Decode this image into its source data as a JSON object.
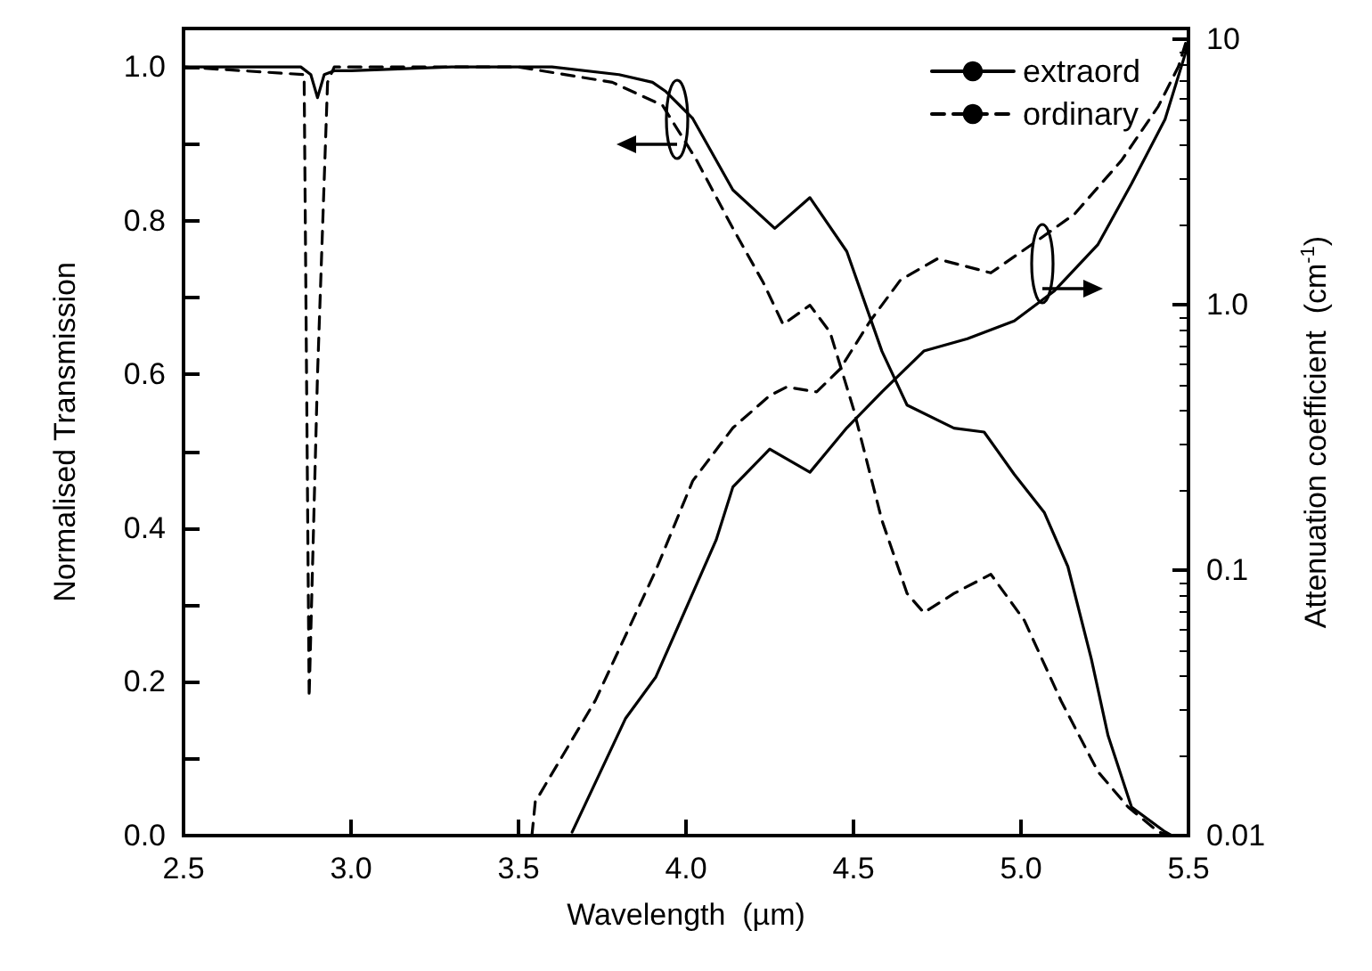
{
  "chart_data": {
    "type": "line",
    "xlabel": "Wavelength  (µm)",
    "ylabel": "Normalised Transmission",
    "y2label": "Attenuation coefficient  (cm$^{-1}$)",
    "xlim": [
      2.5,
      5.5
    ],
    "xticks": [
      {
        "value": 2.5,
        "label": "2.5"
      },
      {
        "value": 3,
        "label": "3.0"
      },
      {
        "value": 3.5,
        "label": "3.5"
      },
      {
        "value": 4,
        "label": "4.0"
      },
      {
        "value": 4.5,
        "label": "4.5"
      },
      {
        "value": 5,
        "label": "5.0"
      },
      {
        "value": 5.5,
        "label": "5.5"
      }
    ],
    "ylim": [
      0,
      1.05
    ],
    "yticks": [
      {
        "value": 0,
        "label": "0.0"
      },
      {
        "value": 0.1,
        "label": null
      },
      {
        "value": 0.2,
        "label": "0.2"
      },
      {
        "value": 0.3,
        "label": null
      },
      {
        "value": 0.4,
        "label": "0.4"
      },
      {
        "value": 0.5,
        "label": null
      },
      {
        "value": 0.6,
        "label": "0.6"
      },
      {
        "value": 0.7,
        "label": null
      },
      {
        "value": 0.8,
        "label": "0.8"
      },
      {
        "value": 0.9,
        "label": null
      },
      {
        "value": 1,
        "label": "1.0"
      }
    ],
    "y2lim": [
      0.01,
      11
    ],
    "y2ticks": [
      0.01,
      0.1,
      {
        "value": 1,
        "label": "1.0"
      },
      10
    ],
    "log": "y2",
    "grid": false,
    "legend": "top right",
    "marker": "none",
    "series": [
      {
        "name": "extraord",
        "color": "#000000",
        "line_style": "solid",
        "x": [
          2.5,
          2.85,
          2.88,
          2.9,
          2.92,
          2.95,
          3.0,
          3.3,
          3.6,
          3.8,
          3.9,
          3.94,
          4.02,
          4.14,
          4.265,
          4.37,
          4.48,
          4.585,
          4.66,
          4.8,
          4.89,
          4.98,
          5.07,
          5.14,
          5.21,
          5.26,
          5.33,
          5.43,
          5.45
        ],
        "values": [
          1.0,
          1.0,
          0.99,
          0.96,
          0.99,
          0.995,
          0.995,
          1.0,
          1.0,
          0.99,
          0.98,
          0.968,
          0.933,
          0.84,
          0.79,
          0.83,
          0.76,
          0.63,
          0.56,
          0.53,
          0.525,
          0.47,
          0.42,
          0.35,
          0.23,
          0.13,
          0.037,
          0.005,
          0.0
        ]
      },
      {
        "name": "ordinary",
        "color": "#000000",
        "line_style": "dashed",
        "x": [
          2.5,
          2.86,
          2.875,
          2.9,
          2.93,
          2.95,
          3.5,
          3.78,
          3.93,
          4.03,
          4.14,
          4.23,
          4.29,
          4.37,
          4.43,
          4.5,
          4.585,
          4.66,
          4.71,
          4.8,
          4.91,
          5.01,
          5.12,
          5.23,
          5.32,
          5.41,
          5.44
        ],
        "values": [
          1.0,
          0.99,
          0.18,
          0.6,
          0.98,
          1.0,
          1.0,
          0.98,
          0.95,
          0.88,
          0.79,
          0.72,
          0.665,
          0.69,
          0.655,
          0.555,
          0.41,
          0.315,
          0.29,
          0.315,
          0.34,
          0.28,
          0.175,
          0.083,
          0.037,
          0.005,
          0.0
        ]
      },
      {
        "color": "#000000",
        "line_style": "solid",
        "axis": "y2",
        "x": [
          3.66,
          3.82,
          3.91,
          4.09,
          4.14,
          4.25,
          4.37,
          4.48,
          4.585,
          4.71,
          4.84,
          4.98,
          5.1,
          5.23,
          5.33,
          5.43,
          5.49,
          5.5
        ],
        "values": [
          0.0103,
          0.0277,
          0.0396,
          0.13,
          0.206,
          0.286,
          0.234,
          0.344,
          0.47,
          0.67,
          0.745,
          0.87,
          1.13,
          1.69,
          2.86,
          5.0,
          8.8,
          10.0
        ]
      },
      {
        "color": "#000000",
        "line_style": "dashed",
        "axis": "y2",
        "x": [
          3.54,
          3.55,
          3.73,
          3.91,
          4.02,
          4.14,
          4.25,
          4.3,
          4.39,
          4.46,
          4.55,
          4.64,
          4.75,
          4.91,
          5.05,
          5.16,
          5.3,
          5.41,
          5.47,
          5.5
        ],
        "values": [
          0.01,
          0.0134,
          0.0324,
          0.1,
          0.217,
          0.344,
          0.455,
          0.49,
          0.47,
          0.573,
          0.87,
          1.24,
          1.49,
          1.32,
          1.75,
          2.2,
          3.5,
          5.6,
          7.9,
          10.5
        ]
      }
    ]
  }
}
